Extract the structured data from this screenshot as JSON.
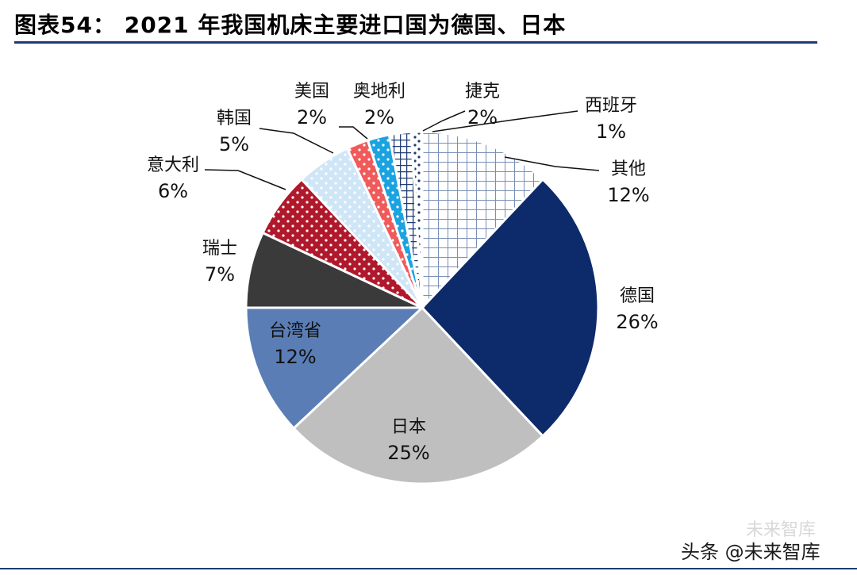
{
  "title": "图表54： 2021 年我国机床主要进口国为德国、日本",
  "watermark": "头条 @未来智库",
  "watermark_ghost": "未来智库",
  "chart_data": {
    "type": "pie",
    "start_angle_deg": 0,
    "direction": "clockwise",
    "slices": [
      {
        "label": "其他",
        "value": 12,
        "pct_label": "12%",
        "fill": "#ffffff",
        "pattern": "grid",
        "pattern_color": "#7a8fb5"
      },
      {
        "label": "德国",
        "value": 26,
        "pct_label": "26%",
        "fill": "#0d2a6b",
        "pattern": "none"
      },
      {
        "label": "日本",
        "value": 25,
        "pct_label": "25%",
        "fill": "#bfbfbf",
        "pattern": "none"
      },
      {
        "label": "台湾省",
        "value": 12,
        "pct_label": "12%",
        "fill": "#5a7db5",
        "pattern": "none"
      },
      {
        "label": "瑞士",
        "value": 7,
        "pct_label": "7%",
        "fill": "#3a3a3a",
        "pattern": "none"
      },
      {
        "label": "意大利",
        "value": 6,
        "pct_label": "6%",
        "fill": "#b0182b",
        "pattern": "dots",
        "pattern_color": "#ffffff"
      },
      {
        "label": "韩国",
        "value": 5,
        "pct_label": "5%",
        "fill": "#cfe6f7",
        "pattern": "dots",
        "pattern_color": "#ffffff"
      },
      {
        "label": "美国",
        "value": 2,
        "pct_label": "2%",
        "fill": "#f05a5a",
        "pattern": "dots",
        "pattern_color": "#ffffff"
      },
      {
        "label": "奥地利",
        "value": 2,
        "pct_label": "2%",
        "fill": "#1aa3e0",
        "pattern": "dots",
        "pattern_color": "#ffffff"
      },
      {
        "label": "捷克",
        "value": 2,
        "pct_label": "2%",
        "fill": "#ffffff",
        "pattern": "hatch",
        "pattern_color": "#1f3b73"
      },
      {
        "label": "西班牙",
        "value": 1,
        "pct_label": "1%",
        "fill": "#ffffff",
        "pattern": "dots",
        "pattern_color": "#1f3b73"
      }
    ]
  }
}
